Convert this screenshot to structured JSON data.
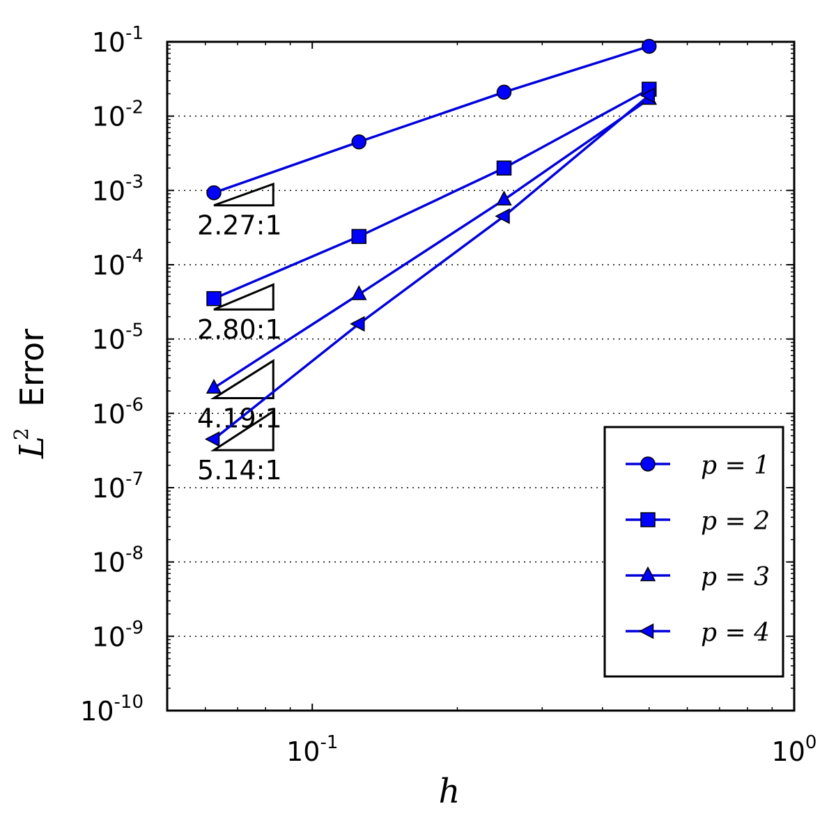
{
  "chart_data": {
    "type": "line",
    "title": "",
    "xlabel": "h",
    "ylabel_symbol": "L",
    "ylabel_superscript": "2",
    "ylabel_text": "Error",
    "xscale": "log",
    "yscale": "log",
    "xlim": [
      0.05,
      1.0
    ],
    "ylim": [
      1e-10,
      0.1
    ],
    "x_ticks": [
      {
        "value": 0.1,
        "base": "10",
        "exp": "-1"
      },
      {
        "value": 1.0,
        "base": "10",
        "exp": "0"
      }
    ],
    "y_ticks": [
      {
        "value": 0.1,
        "base": "10",
        "exp": "-1"
      },
      {
        "value": 0.01,
        "base": "10",
        "exp": "-2"
      },
      {
        "value": 0.001,
        "base": "10",
        "exp": "-3"
      },
      {
        "value": 0.0001,
        "base": "10",
        "exp": "-4"
      },
      {
        "value": 1e-05,
        "base": "10",
        "exp": "-5"
      },
      {
        "value": 1e-06,
        "base": "10",
        "exp": "-6"
      },
      {
        "value": 1e-07,
        "base": "10",
        "exp": "-7"
      },
      {
        "value": 1e-08,
        "base": "10",
        "exp": "-8"
      },
      {
        "value": 1e-09,
        "base": "10",
        "exp": "-9"
      },
      {
        "value": 1e-10,
        "base": "10",
        "exp": "-10"
      }
    ],
    "grid": "horizontal dotted at major y ticks",
    "legend_position": "lower-right",
    "line_color": "#0000dd",
    "marker_color": "#0000ff",
    "x": [
      0.0625,
      0.125,
      0.25,
      0.5
    ],
    "series": [
      {
        "name": "p = 1",
        "marker": "circle",
        "values": [
          0.00093,
          0.0045,
          0.021,
          0.087
        ]
      },
      {
        "name": "p = 2",
        "marker": "square",
        "values": [
          3.5e-05,
          0.00024,
          0.002,
          0.023
        ]
      },
      {
        "name": "p = 3",
        "marker": "triangle-up",
        "values": [
          2.2e-06,
          4e-05,
          0.00075,
          0.017
        ]
      },
      {
        "name": "p = 4",
        "marker": "triangle-left",
        "values": [
          4.5e-07,
          1.6e-05,
          0.00045,
          0.019
        ]
      }
    ],
    "slope_annotations": [
      {
        "label": "2.27:1",
        "x0": 0.0625,
        "x1": 0.083,
        "y0": 0.00063,
        "y1": 0.00122
      },
      {
        "label": "2.80:1",
        "x0": 0.0625,
        "x1": 0.083,
        "y0": 2.5e-05,
        "y1": 5.4e-05
      },
      {
        "label": "4.19:1",
        "x0": 0.0625,
        "x1": 0.083,
        "y0": 1.6e-06,
        "y1": 5.1e-06
      },
      {
        "label": "5.14:1",
        "x0": 0.0625,
        "x1": 0.083,
        "y0": 3.2e-07,
        "y1": 1.06e-06
      }
    ]
  }
}
